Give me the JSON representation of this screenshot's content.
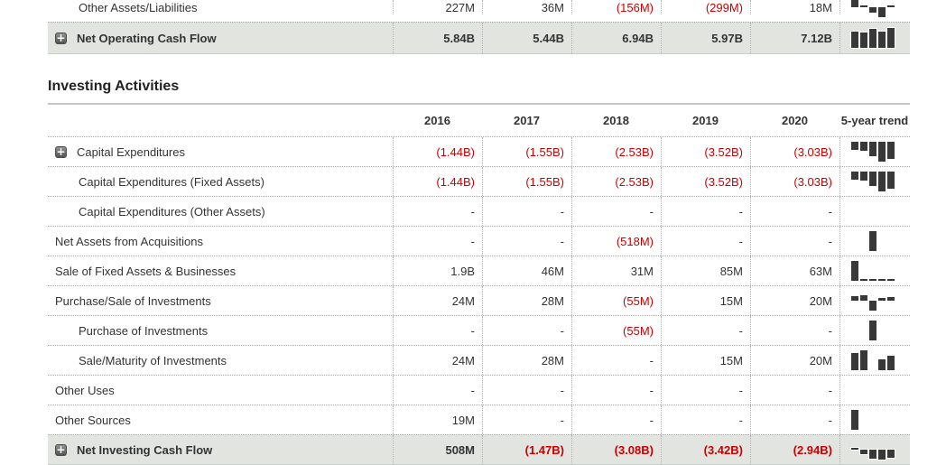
{
  "icons": {
    "expand_glyph": "+"
  },
  "colors": {
    "negative_value": "#cc0000",
    "sparkline_bar": "#383838",
    "summary_row_background": "#e2e4e0",
    "row_divider": "#a8a8a8"
  },
  "header": {
    "years": [
      "2016",
      "2017",
      "2018",
      "2019",
      "2020"
    ],
    "trend_label": "5-year trend"
  },
  "pre_rows": [
    {
      "label": "Other Assets/Liabilities",
      "indent": "sub",
      "expandable": false,
      "summary": false,
      "values": [
        "227M",
        "36M",
        "(156M)",
        "(299M)",
        "18M"
      ],
      "trend": [
        227,
        36,
        -156,
        -299,
        18
      ]
    },
    {
      "label": "Net Operating Cash Flow",
      "indent": "top",
      "expandable": true,
      "summary": true,
      "values": [
        "5.84B",
        "5.44B",
        "6.94B",
        "5.97B",
        "7.12B"
      ],
      "trend": [
        5840,
        5440,
        6940,
        5970,
        7120
      ]
    }
  ],
  "investing": {
    "heading": "Investing Activities",
    "rows": [
      {
        "label": "Capital Expenditures",
        "indent": "top",
        "expandable": true,
        "summary": false,
        "values": [
          "(1.44B)",
          "(1.55B)",
          "(2.53B)",
          "(3.52B)",
          "(3.03B)"
        ],
        "trend": [
          -1440,
          -1550,
          -2530,
          -3520,
          -3030
        ]
      },
      {
        "label": "Capital Expenditures (Fixed Assets)",
        "indent": "sub",
        "expandable": false,
        "summary": false,
        "values": [
          "(1.44B)",
          "(1.55B)",
          "(2.53B)",
          "(3.52B)",
          "(3.03B)"
        ],
        "trend": [
          -1440,
          -1550,
          -2530,
          -3520,
          -3030
        ]
      },
      {
        "label": "Capital Expenditures (Other Assets)",
        "indent": "sub",
        "expandable": false,
        "summary": false,
        "values": [
          "-",
          "-",
          "-",
          "-",
          "-"
        ],
        "trend": null
      },
      {
        "label": "Net Assets from Acquisitions",
        "indent": "top",
        "expandable": false,
        "summary": false,
        "values": [
          "-",
          "-",
          "(518M)",
          "-",
          "-"
        ],
        "trend": [
          null,
          null,
          -518,
          null,
          null
        ]
      },
      {
        "label": "Sale of Fixed Assets & Businesses",
        "indent": "top",
        "expandable": false,
        "summary": false,
        "values": [
          "1.9B",
          "46M",
          "31M",
          "85M",
          "63M"
        ],
        "trend": [
          1900,
          46,
          31,
          85,
          63
        ]
      },
      {
        "label": "Purchase/Sale of Investments",
        "indent": "top",
        "expandable": false,
        "summary": false,
        "values": [
          "24M",
          "28M",
          "(55M)",
          "15M",
          "20M"
        ],
        "trend": [
          24,
          28,
          -55,
          15,
          20
        ]
      },
      {
        "label": "Purchase of Investments",
        "indent": "sub",
        "expandable": false,
        "summary": false,
        "values": [
          "-",
          "-",
          "(55M)",
          "-",
          "-"
        ],
        "trend": [
          null,
          null,
          -55,
          null,
          null
        ]
      },
      {
        "label": "Sale/Maturity of Investments",
        "indent": "sub",
        "expandable": false,
        "summary": false,
        "values": [
          "24M",
          "28M",
          "-",
          "15M",
          "20M"
        ],
        "trend": [
          24,
          28,
          null,
          15,
          20
        ]
      },
      {
        "label": "Other Uses",
        "indent": "top",
        "expandable": false,
        "summary": false,
        "values": [
          "-",
          "-",
          "-",
          "-",
          "-"
        ],
        "trend": null
      },
      {
        "label": "Other Sources",
        "indent": "top",
        "expandable": false,
        "summary": false,
        "values": [
          "19M",
          "-",
          "-",
          "-",
          "-"
        ],
        "trend": [
          19,
          null,
          null,
          null,
          null
        ]
      },
      {
        "label": "Net Investing Cash Flow",
        "indent": "top",
        "expandable": true,
        "summary": true,
        "values": [
          "508M",
          "(1.47B)",
          "(3.08B)",
          "(3.42B)",
          "(2.94B)"
        ],
        "trend": [
          508,
          -1470,
          -3080,
          -3420,
          -2940
        ]
      }
    ]
  }
}
